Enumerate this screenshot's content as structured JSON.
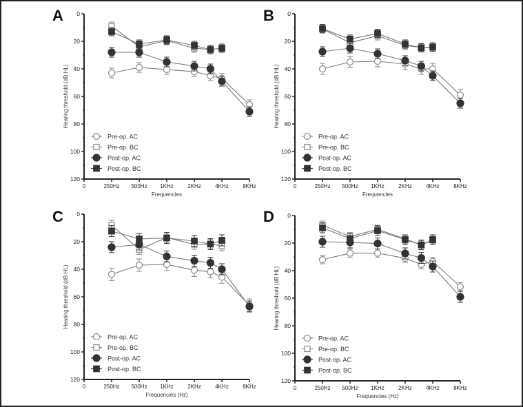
{
  "chart_data": [
    {
      "type": "line",
      "panel_label": "A",
      "xlabel": "Frequencies",
      "ylabel": "Hearing threshold (dB HL)",
      "x_tick_labels": [
        "0",
        "250Hz",
        "500Hz",
        "1KHz",
        "2KHz",
        "4KHz",
        "8KHz"
      ],
      "y_ticks": [
        0,
        20,
        40,
        60,
        80,
        100,
        120
      ],
      "ylim": [
        0,
        120
      ],
      "y_inverted": true,
      "legend_position": "bottom-left",
      "series": [
        {
          "name": "Pre-op. AC",
          "x": [
            250,
            500,
            1000,
            2000,
            3000,
            4000,
            8000
          ],
          "values": [
            43,
            39,
            40.5,
            42,
            45,
            47,
            66
          ],
          "err": 3.5
        },
        {
          "name": "Pre-op. BC",
          "x": [
            250,
            500,
            1000,
            2000,
            3000,
            4000
          ],
          "values": [
            9,
            24,
            19.5,
            25,
            26,
            25
          ],
          "err": 3
        },
        {
          "name": "Post-op. AC",
          "x": [
            250,
            500,
            1000,
            2000,
            3000,
            4000,
            8000
          ],
          "values": [
            28,
            28,
            35,
            38,
            40,
            49,
            71
          ],
          "err": 3.5
        },
        {
          "name": "Post-op. BC",
          "x": [
            250,
            500,
            1000,
            2000,
            3000,
            4000
          ],
          "values": [
            13,
            22,
            19,
            23,
            26,
            25
          ],
          "err": 3
        }
      ]
    },
    {
      "type": "line",
      "panel_label": "B",
      "xlabel": "Frequencies",
      "ylabel": "Hearing threshold (dB HL)",
      "x_tick_labels": [
        "0",
        "250Hz",
        "500Hz",
        "1KHz",
        "2KHz",
        "4KHz",
        "8KHz"
      ],
      "y_ticks": [
        0,
        20,
        40,
        60,
        80,
        100,
        120
      ],
      "ylim": [
        0,
        120
      ],
      "y_inverted": true,
      "legend_position": "bottom-left",
      "series": [
        {
          "name": "Pre-op. AC",
          "x": [
            250,
            500,
            1000,
            2000,
            3000,
            4000,
            8000
          ],
          "values": [
            40,
            35,
            34.5,
            36.5,
            40,
            40,
            59
          ],
          "err": 4
        },
        {
          "name": "Pre-op. BC",
          "x": [
            250,
            500,
            1000,
            2000,
            3000,
            4000
          ],
          "values": [
            11,
            21,
            16,
            23,
            24.5,
            24
          ],
          "err": 3
        },
        {
          "name": "Post-op. AC",
          "x": [
            250,
            500,
            1000,
            2000,
            3000,
            4000,
            8000
          ],
          "values": [
            27.5,
            25,
            29,
            34,
            38,
            45,
            65
          ],
          "err": 3.5
        },
        {
          "name": "Post-op. BC",
          "x": [
            250,
            500,
            1000,
            2000,
            3000,
            4000
          ],
          "values": [
            10.8,
            18.4,
            14.3,
            22,
            24.7,
            24.2
          ],
          "err": 3
        }
      ]
    },
    {
      "type": "line",
      "panel_label": "C",
      "xlabel": "Frequencies (Hz)",
      "ylabel": "Hearing threshold (dB HL)",
      "x_tick_labels": [
        "0",
        "250Hz",
        "500Hz",
        "1KHz",
        "2KHz",
        "4KHz",
        "8KHz"
      ],
      "y_ticks": [
        0,
        20,
        40,
        60,
        80,
        100,
        120
      ],
      "ylim": [
        0,
        120
      ],
      "y_inverted": true,
      "legend_position": "bottom-left",
      "series": [
        {
          "name": "Pre-op. AC",
          "x": [
            250,
            500,
            1000,
            2000,
            3000,
            4000,
            8000
          ],
          "values": [
            43.7,
            37,
            36.5,
            40.7,
            41.8,
            45.7,
            66
          ],
          "err": 4.5
        },
        {
          "name": "Pre-op. BC",
          "x": [
            250,
            500,
            1000,
            2000,
            3000,
            4000
          ],
          "values": [
            8,
            25.7,
            17,
            22,
            21.7,
            23
          ],
          "err": 3.5
        },
        {
          "name": "Post-op. AC",
          "x": [
            250,
            500,
            1000,
            2000,
            3000,
            4000,
            8000
          ],
          "values": [
            24,
            22,
            30.7,
            33.8,
            35.3,
            40,
            67
          ],
          "err": 4
        },
        {
          "name": "Post-op. BC",
          "x": [
            250,
            500,
            1000,
            2000,
            3000,
            4000
          ],
          "values": [
            12.3,
            18,
            17.3,
            19.5,
            21.7,
            19
          ],
          "err": 4
        }
      ]
    },
    {
      "type": "line",
      "panel_label": "D",
      "xlabel": "Frequencies (Hz)",
      "ylabel": "Hearing threshold (dB HL)",
      "x_tick_labels": [
        "0",
        "250Hz",
        "500Hz",
        "1KHz",
        "2KHz",
        "4KHz",
        "8KHz"
      ],
      "y_ticks": [
        0,
        20,
        40,
        60,
        80,
        100,
        120
      ],
      "ylim": [
        0,
        120
      ],
      "y_inverted": true,
      "legend_position": "bottom-left",
      "series": [
        {
          "name": "Pre-op. AC",
          "x": [
            250,
            500,
            1000,
            2000,
            3000,
            4000,
            8000
          ],
          "values": [
            32,
            27.3,
            27.3,
            31,
            35.5,
            33.3,
            51.7
          ],
          "err": 3
        },
        {
          "name": "Pre-op. BC",
          "x": [
            250,
            500,
            1000,
            2000,
            3000,
            4000
          ],
          "values": [
            7,
            15.3,
            10,
            17,
            21.3,
            18
          ],
          "err": 3
        },
        {
          "name": "Post-op. AC",
          "x": [
            250,
            500,
            1000,
            2000,
            3000,
            4000,
            8000
          ],
          "values": [
            19,
            19.5,
            20.3,
            27.5,
            30.8,
            37,
            59
          ],
          "err": 4
        },
        {
          "name": "Post-op. BC",
          "x": [
            250,
            500,
            1000,
            2000,
            3000,
            4000
          ],
          "values": [
            9,
            16.7,
            11,
            17.5,
            21.3,
            17.5
          ],
          "err": 3.5
        }
      ]
    }
  ],
  "styles": {
    "pre_color": "#8a8a8a",
    "post_color": "#333333",
    "axis_color": "#222222"
  }
}
